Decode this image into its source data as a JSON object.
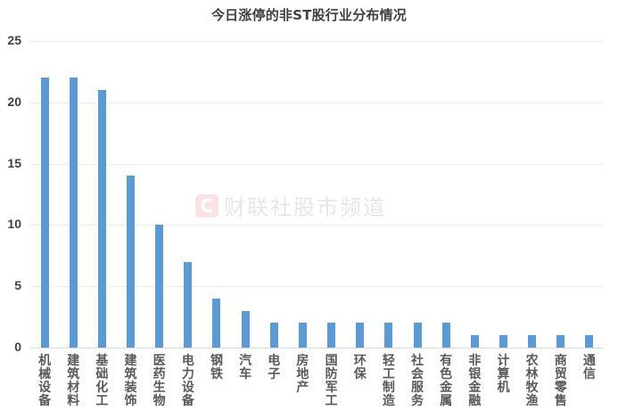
{
  "chart_data": {
    "type": "bar",
    "title": "今日涨停的非ST股行业分布情况",
    "xlabel": "",
    "ylabel": "",
    "ylim": [
      0,
      25
    ],
    "yticks": [
      0,
      5,
      10,
      15,
      20,
      25
    ],
    "grid": true,
    "legend": null,
    "bar_color": "#5b9bd5",
    "categories": [
      "机械设备",
      "建筑材料",
      "基础化工",
      "建筑装饰",
      "医药生物",
      "电力设备",
      "钢铁",
      "汽车",
      "电子",
      "房地产",
      "国防军工",
      "环保",
      "轻工制造",
      "社会服务",
      "有色金属",
      "非银金融",
      "计算机",
      "农林牧渔",
      "商贸零售",
      "通信"
    ],
    "values": [
      22,
      22,
      21,
      14,
      10,
      7,
      4,
      3,
      2,
      2,
      2,
      2,
      2,
      2,
      2,
      1,
      1,
      1,
      1,
      1
    ]
  },
  "watermark": {
    "logo": "C",
    "text": "财联社股市频道"
  }
}
